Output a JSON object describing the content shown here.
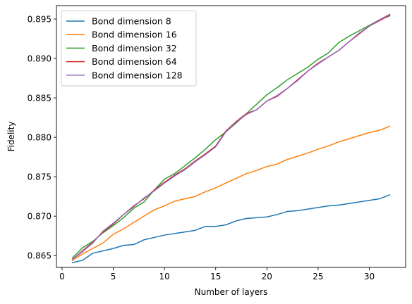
{
  "chart_data": {
    "type": "line",
    "title": "",
    "xlabel": "Number of layers",
    "ylabel": "Fidelity",
    "xlim": [
      -0.55,
      33.55
    ],
    "ylim": [
      0.8635,
      0.8967
    ],
    "xticks": [
      0,
      5,
      10,
      15,
      20,
      25,
      30
    ],
    "yticks": [
      0.865,
      0.87,
      0.875,
      0.88,
      0.885,
      0.89,
      0.895
    ],
    "xtick_labels": [
      "0",
      "5",
      "10",
      "15",
      "20",
      "25",
      "30"
    ],
    "ytick_labels": [
      "0.865",
      "0.870",
      "0.875",
      "0.880",
      "0.885",
      "0.890",
      "0.895"
    ],
    "grid": false,
    "legend": {
      "placement": "top-left"
    },
    "x": [
      1,
      2,
      3,
      4,
      5,
      6,
      7,
      8,
      9,
      10,
      11,
      12,
      13,
      14,
      15,
      16,
      17,
      18,
      19,
      20,
      21,
      22,
      23,
      24,
      25,
      26,
      27,
      28,
      29,
      30,
      31,
      32
    ],
    "series": [
      {
        "name": "Bond dimension 8",
        "color": "#1f77b4",
        "values": [
          0.8641,
          0.8644,
          0.8653,
          0.8656,
          0.8659,
          0.8663,
          0.8664,
          0.867,
          0.8673,
          0.8676,
          0.8678,
          0.868,
          0.8682,
          0.8687,
          0.8687,
          0.8689,
          0.8694,
          0.8697,
          0.8698,
          0.8699,
          0.8702,
          0.8706,
          0.8707,
          0.8709,
          0.8711,
          0.8713,
          0.8714,
          0.8716,
          0.8718,
          0.872,
          0.8722,
          0.8727
        ]
      },
      {
        "name": "Bond dimension 16",
        "color": "#ff7f0e",
        "values": [
          0.8644,
          0.8652,
          0.8659,
          0.8666,
          0.8677,
          0.8684,
          0.8692,
          0.87,
          0.8708,
          0.8713,
          0.8719,
          0.8722,
          0.8725,
          0.8731,
          0.8736,
          0.8742,
          0.8748,
          0.8754,
          0.8758,
          0.8763,
          0.8766,
          0.8772,
          0.8776,
          0.878,
          0.8785,
          0.8789,
          0.8794,
          0.8798,
          0.8802,
          0.8806,
          0.8809,
          0.8814
        ]
      },
      {
        "name": "Bond dimension 32",
        "color": "#2ca02c",
        "values": [
          0.8647,
          0.866,
          0.8668,
          0.8679,
          0.8688,
          0.8698,
          0.871,
          0.8718,
          0.8733,
          0.8747,
          0.8754,
          0.8764,
          0.8774,
          0.8785,
          0.8797,
          0.8807,
          0.8818,
          0.883,
          0.8842,
          0.8854,
          0.8863,
          0.8873,
          0.8881,
          0.8889,
          0.8899,
          0.8907,
          0.892,
          0.8928,
          0.8935,
          0.8942,
          0.8949,
          0.8954
        ]
      },
      {
        "name": "Bond dimension 64",
        "color": "#d62728",
        "values": [
          0.8645,
          0.8656,
          0.8667,
          0.868,
          0.869,
          0.8702,
          0.8713,
          0.8722,
          0.8733,
          0.8743,
          0.8752,
          0.876,
          0.877,
          0.8779,
          0.8789,
          0.8808,
          0.882,
          0.883,
          0.8835,
          0.8846,
          0.8852,
          0.8862,
          0.8873,
          0.8884,
          0.8894,
          0.8902,
          0.891,
          0.8921,
          0.8931,
          0.8941,
          0.8948,
          0.8955
        ]
      },
      {
        "name": "Bond dimension 128",
        "color": "#9467bd",
        "values": [
          0.8645,
          0.8655,
          0.8666,
          0.8681,
          0.8691,
          0.8702,
          0.8712,
          0.8723,
          0.8732,
          0.8742,
          0.8751,
          0.8759,
          0.8769,
          0.8778,
          0.8788,
          0.8807,
          0.8819,
          0.8829,
          0.8835,
          0.8846,
          0.8853,
          0.8862,
          0.8872,
          0.8884,
          0.8893,
          0.8902,
          0.891,
          0.8921,
          0.8932,
          0.8941,
          0.8949,
          0.8956
        ]
      }
    ]
  }
}
